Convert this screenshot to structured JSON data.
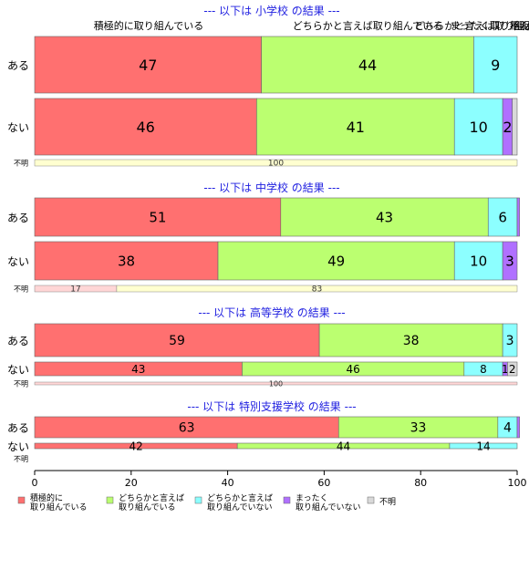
{
  "chart_data": {
    "type": "bar",
    "orientation": "horizontal",
    "stacked": true,
    "xlim": [
      0,
      100
    ],
    "x_ticks": [
      "0",
      "20",
      "40",
      "60",
      "80",
      "100"
    ],
    "legend_position": "bottom",
    "categories": [
      "積極的に取り組んでいる",
      "どちらかと言えば取り組んでいる",
      "どちらかと言えば取り組んでいない",
      "まったく取り組んでいない",
      "不明"
    ],
    "legend": [
      {
        "label": "積極的に\n取り組んでいる",
        "color": "#ff7070"
      },
      {
        "label": "どちらかと言えば\n取り組んでいる",
        "color": "#bbff70"
      },
      {
        "label": "どちらかと言えば\n取り組んでいない",
        "color": "#8cffff"
      },
      {
        "label": "まったく\n取り組んでいない",
        "color": "#b070ff"
      },
      {
        "label": "不明",
        "color": "#d9d9d9"
      }
    ],
    "top_labels": [
      "積極的に取り組んでいる",
      "どちらかと言えば取り組んでいる",
      "どちらかと言えば取り組んでいない",
      "まったく取り組んでいない",
      "不明"
    ],
    "panels": [
      {
        "title": "--- 以下は 小学校 の結果 ---",
        "rows": [
          {
            "label": "ある",
            "values": [
              47,
              44,
              9,
              0,
              0
            ],
            "value_labels": [
              "47",
              "44",
              "9",
              "",
              ""
            ]
          },
          {
            "label": "ない",
            "values": [
              46,
              41,
              10,
              2,
              1
            ],
            "value_labels": [
              "46",
              "41",
              "10",
              "2",
              ""
            ]
          }
        ],
        "unknown_row": {
          "label": "不明",
          "segments": [
            {
              "value": 100,
              "color": "#ffffd0",
              "label": "100"
            }
          ]
        }
      },
      {
        "title": "--- 以下は 中学校 の結果 ---",
        "rows": [
          {
            "label": "ある",
            "values": [
              51,
              43,
              6,
              0.5,
              0
            ],
            "value_labels": [
              "51",
              "43",
              "6",
              "",
              ""
            ]
          },
          {
            "label": "ない",
            "values": [
              38,
              49,
              10,
              3,
              0
            ],
            "value_labels": [
              "38",
              "49",
              "10",
              "3",
              ""
            ]
          }
        ],
        "unknown_row": {
          "label": "不明",
          "segments": [
            {
              "value": 17,
              "color": "#ffd6d6",
              "label": "17"
            },
            {
              "value": 83,
              "color": "#ffffd0",
              "label": "83"
            }
          ]
        }
      },
      {
        "title": "--- 以下は 高等学校 の結果 ---",
        "rows": [
          {
            "label": "ある",
            "values": [
              59,
              38,
              3,
              0,
              0
            ],
            "value_labels": [
              "59",
              "38",
              "3",
              "",
              ""
            ]
          },
          {
            "label": "ない",
            "values": [
              43,
              46,
              8,
              1,
              2
            ],
            "value_labels": [
              "43",
              "46",
              "8",
              "1",
              "2"
            ]
          }
        ],
        "unknown_row": {
          "label": "不明",
          "segments": [
            {
              "value": 100,
              "color": "#ffd6d6",
              "label": "100"
            }
          ]
        }
      },
      {
        "title": "--- 以下は 特別支援学校 の結果 ---",
        "rows": [
          {
            "label": "ある",
            "values": [
              63,
              33,
              4,
              0.5,
              0
            ],
            "value_labels": [
              "63",
              "33",
              "4",
              "",
              ""
            ]
          },
          {
            "label": "ない",
            "values": [
              42,
              44,
              14,
              0,
              0
            ],
            "value_labels": [
              "42",
              "44",
              "14",
              "",
              ""
            ]
          }
        ],
        "unknown_row": {
          "label": "不明",
          "segments": []
        }
      }
    ]
  }
}
